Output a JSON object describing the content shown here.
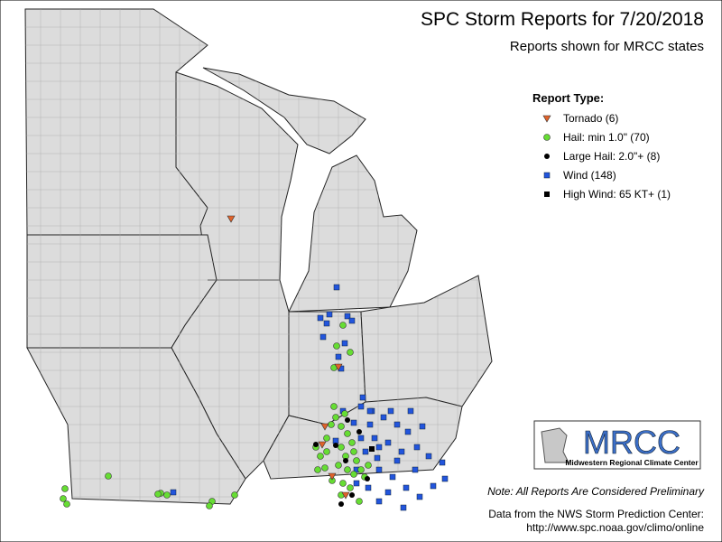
{
  "header": {
    "title": "SPC Storm Reports for 7/20/2018",
    "subtitle": "Reports shown for MRCC states"
  },
  "legend": {
    "title": "Report Type:",
    "items": [
      {
        "label": "Tornado (6)",
        "marker": "tornado"
      },
      {
        "label": "Hail: min 1.0\" (70)",
        "marker": "hail"
      },
      {
        "label": "Large Hail: 2.0\"+ (8)",
        "marker": "large-hail"
      },
      {
        "label": "Wind (148)",
        "marker": "wind"
      },
      {
        "label": "High Wind: 65 KT+ (1)",
        "marker": "high-wind"
      }
    ]
  },
  "logo": {
    "name": "MRCC",
    "full_name": "Midwestern Regional Climate Center"
  },
  "footer": {
    "note": "Note: All Reports Are Considered Preliminary",
    "source": "Data from the NWS Storm Prediction Center:",
    "url": "http://www.spc.noaa.gov/climo/online"
  }
}
